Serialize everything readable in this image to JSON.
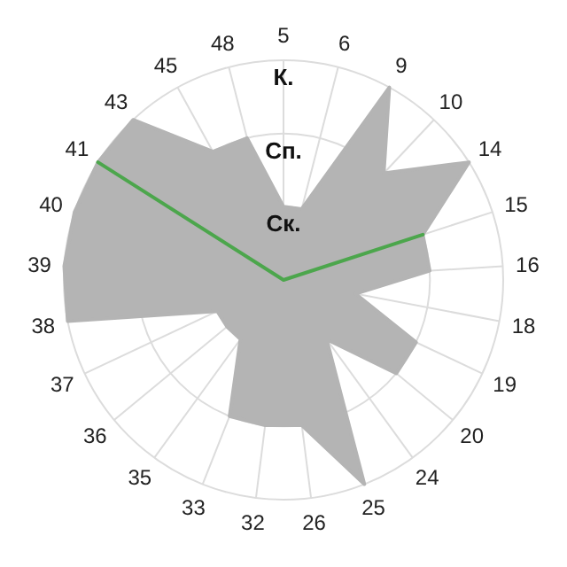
{
  "chart_data": {
    "type": "radar",
    "categories": [
      "5",
      "6",
      "9",
      "10",
      "14",
      "15",
      "16",
      "18",
      "19",
      "20",
      "24",
      "25",
      "26",
      "32",
      "33",
      "35",
      "36",
      "37",
      "38",
      "39",
      "40",
      "41",
      "43",
      "45",
      "48"
    ],
    "ylim": [
      0,
      3
    ],
    "yticks": [
      {
        "value": 1,
        "label": "Ск."
      },
      {
        "value": 2,
        "label": "Сп."
      },
      {
        "value": 3,
        "label": "К."
      }
    ],
    "grid": true,
    "series": [
      {
        "color": "#b4b4b4",
        "values": [
          1,
          1,
          3,
          2,
          3,
          2,
          2,
          1,
          2,
          2,
          1,
          3,
          2,
          2,
          2,
          1,
          1,
          1,
          3,
          3,
          3,
          3,
          3,
          2,
          2
        ]
      },
      {
        "color": "#4ca64c",
        "values": [
          0,
          0,
          0,
          0,
          0,
          2,
          0,
          0,
          0,
          0,
          0,
          0,
          0,
          0,
          0,
          0,
          0,
          0,
          0,
          0,
          0,
          3,
          0,
          0,
          0
        ]
      }
    ]
  }
}
